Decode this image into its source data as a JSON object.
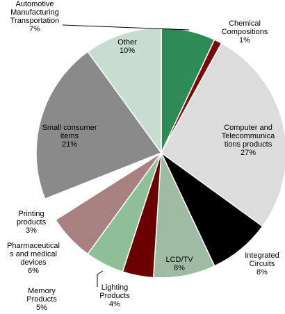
{
  "chart_data": {
    "type": "pie",
    "categories": [
      "Automotive\nManufacturing\nTransportation",
      "Chemical\nCompositions",
      "Computer and\nTelecommunica\ntions products",
      "Integrated\nCircuits",
      "LCD/TV",
      "Lighting\nProducts",
      "Memory\nProducts",
      "Pharmaceutical\ns and medical\ndevices",
      "Printing\nproducts",
      "Small consumer\nitems",
      "Other"
    ],
    "values": [
      7,
      1,
      27,
      8,
      8,
      4,
      5,
      6,
      3,
      21,
      10
    ],
    "value_labels": [
      "7%",
      "1%",
      "27%",
      "8%",
      "8%",
      "4%",
      "5%",
      "6%",
      "3%",
      "21%",
      "10%"
    ],
    "colors": [
      "#2e8b57",
      "#7a0a0a",
      "#dcdcdc",
      "#000000",
      "#9fbba3",
      "#6a0000",
      "#8fbf99",
      "#a88080",
      "#ffffff",
      "#8a8a8a",
      "#c8dcd0"
    ]
  }
}
